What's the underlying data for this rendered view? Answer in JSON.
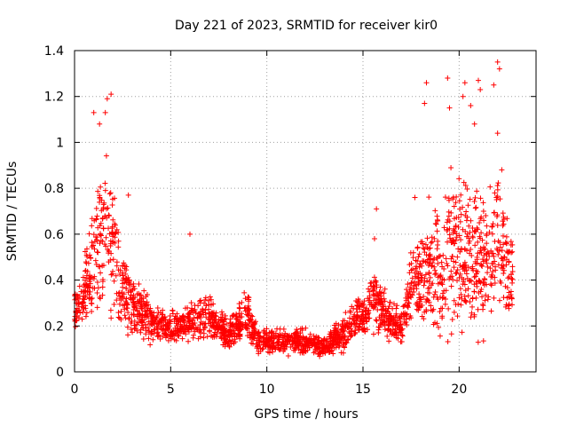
{
  "chart_data": {
    "type": "scatter",
    "title": "Day 221 of 2023, SRMTID for receiver kir0",
    "xlabel": "GPS time / hours",
    "ylabel": "SRMTID / TECUs",
    "xlim": [
      0,
      24
    ],
    "ylim": [
      0,
      1.4
    ],
    "x_ticks": [
      0,
      5,
      10,
      15,
      20
    ],
    "x_tick_labels": [
      "0",
      "5",
      "10",
      "15",
      "20"
    ],
    "y_ticks": [
      0,
      0.2,
      0.4,
      0.6,
      0.8,
      1.0,
      1.2,
      1.4
    ],
    "y_tick_labels": [
      "0",
      "0.2",
      "0.4",
      "0.6",
      "0.8",
      "1",
      "1.2",
      "1.4"
    ],
    "grid": true,
    "marker": "plus",
    "color": "#ff0000",
    "series": [
      {
        "name": "SRMTID",
        "profile": [
          {
            "t": 0.0,
            "median": 0.26,
            "spread": 0.12
          },
          {
            "t": 0.5,
            "median": 0.35,
            "spread": 0.18
          },
          {
            "t": 1.0,
            "median": 0.5,
            "spread": 0.35
          },
          {
            "t": 1.5,
            "median": 0.65,
            "spread": 0.45
          },
          {
            "t": 2.0,
            "median": 0.55,
            "spread": 0.4
          },
          {
            "t": 2.5,
            "median": 0.4,
            "spread": 0.25
          },
          {
            "t": 3.0,
            "median": 0.3,
            "spread": 0.18
          },
          {
            "t": 4.0,
            "median": 0.22,
            "spread": 0.12
          },
          {
            "t": 5.0,
            "median": 0.19,
            "spread": 0.1
          },
          {
            "t": 6.0,
            "median": 0.22,
            "spread": 0.12
          },
          {
            "t": 7.0,
            "median": 0.24,
            "spread": 0.12
          },
          {
            "t": 8.0,
            "median": 0.16,
            "spread": 0.09
          },
          {
            "t": 9.0,
            "median": 0.25,
            "spread": 0.16
          },
          {
            "t": 9.5,
            "median": 0.14,
            "spread": 0.07
          },
          {
            "t": 10.5,
            "median": 0.13,
            "spread": 0.07
          },
          {
            "t": 12.0,
            "median": 0.13,
            "spread": 0.07
          },
          {
            "t": 13.0,
            "median": 0.11,
            "spread": 0.06
          },
          {
            "t": 14.0,
            "median": 0.17,
            "spread": 0.1
          },
          {
            "t": 15.0,
            "median": 0.24,
            "spread": 0.14
          },
          {
            "t": 15.5,
            "median": 0.33,
            "spread": 0.2
          },
          {
            "t": 16.5,
            "median": 0.21,
            "spread": 0.12
          },
          {
            "t": 17.0,
            "median": 0.19,
            "spread": 0.1
          },
          {
            "t": 17.5,
            "median": 0.38,
            "spread": 0.25
          },
          {
            "t": 18.5,
            "median": 0.45,
            "spread": 0.35
          },
          {
            "t": 19.5,
            "median": 0.52,
            "spread": 0.45
          },
          {
            "t": 20.5,
            "median": 0.48,
            "spread": 0.45
          },
          {
            "t": 21.5,
            "median": 0.52,
            "spread": 0.45
          },
          {
            "t": 22.0,
            "median": 0.6,
            "spread": 0.5
          },
          {
            "t": 22.8,
            "median": 0.38,
            "spread": 0.2
          }
        ],
        "outliers": [
          {
            "x": 1.9,
            "y": 1.21
          },
          {
            "x": 1.7,
            "y": 1.19
          },
          {
            "x": 1.0,
            "y": 1.13
          },
          {
            "x": 1.6,
            "y": 1.13
          },
          {
            "x": 1.3,
            "y": 1.08
          },
          {
            "x": 6.0,
            "y": 0.6
          },
          {
            "x": 19.4,
            "y": 1.28
          },
          {
            "x": 18.3,
            "y": 1.26
          },
          {
            "x": 20.3,
            "y": 1.26
          },
          {
            "x": 21.8,
            "y": 1.25
          },
          {
            "x": 22.0,
            "y": 1.35
          },
          {
            "x": 22.1,
            "y": 1.32
          },
          {
            "x": 21.0,
            "y": 1.27
          },
          {
            "x": 21.1,
            "y": 1.23
          },
          {
            "x": 20.2,
            "y": 1.2
          },
          {
            "x": 18.2,
            "y": 1.17
          },
          {
            "x": 19.5,
            "y": 1.15
          },
          {
            "x": 20.6,
            "y": 1.16
          },
          {
            "x": 15.7,
            "y": 0.71
          },
          {
            "x": 15.6,
            "y": 0.58
          },
          {
            "x": 22.0,
            "y": 1.04
          },
          {
            "x": 20.8,
            "y": 1.08
          },
          {
            "x": 17.7,
            "y": 0.76
          },
          {
            "x": 2.8,
            "y": 0.77
          }
        ]
      }
    ]
  }
}
